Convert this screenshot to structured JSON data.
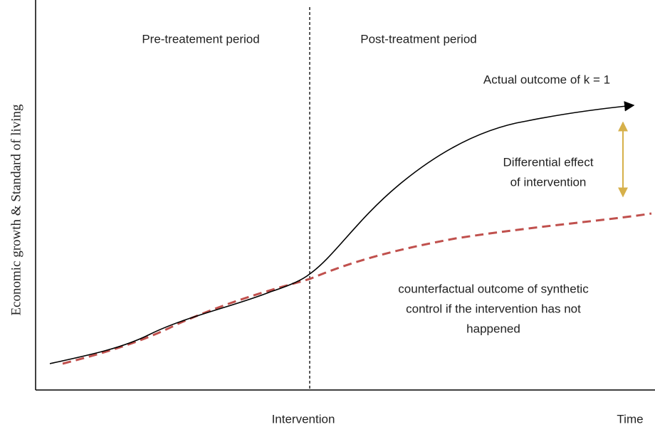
{
  "labels": {
    "pre_period": "Pre-treatement period",
    "post_period": "Post-treatment period",
    "actual_outcome": "Actual outcome of k = 1",
    "differential_effect": [
      "Differential effect",
      "of intervention"
    ],
    "counterfactual": [
      "counterfactual outcome of synthetic",
      "control if the intervention has not",
      "happened"
    ],
    "intervention": "Intervention",
    "time": "Time",
    "y_axis": "Economic growth & Standard of living"
  }
}
